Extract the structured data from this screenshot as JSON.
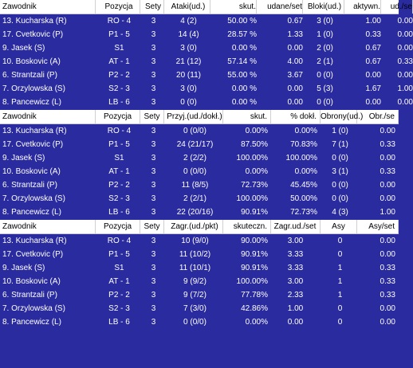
{
  "tables": [
    {
      "headers": [
        "Zawodnik",
        "Pozycja",
        "Sety",
        "Ataki(ud.)",
        "skut.",
        "udane/set",
        "Bloki(ud.)",
        "aktywn.",
        "ud./se"
      ],
      "rows": [
        [
          "13. Kucharska (R)",
          "RO - 4",
          "3",
          "4 (2)",
          "50.00 %",
          "0.67",
          "3 (0)",
          "1.00",
          "0.00"
        ],
        [
          "17. Cvetkovic (P)",
          "P1 - 5",
          "3",
          "14 (4)",
          "28.57 %",
          "1.33",
          "1 (0)",
          "0.33",
          "0.00"
        ],
        [
          "9. Jasek (S)",
          "S1",
          "3",
          "3 (0)",
          "0.00 %",
          "0.00",
          "2 (0)",
          "0.67",
          "0.00"
        ],
        [
          "10. Boskovic (A)",
          "AT - 1",
          "3",
          "21 (12)",
          "57.14 %",
          "4.00",
          "2 (1)",
          "0.67",
          "0.33"
        ],
        [
          "6. Strantzali (P)",
          "P2 - 2",
          "3",
          "20 (11)",
          "55.00 %",
          "3.67",
          "0 (0)",
          "0.00",
          "0.00"
        ],
        [
          "7. Orzylowska (S)",
          "S2 - 3",
          "3",
          "3 (0)",
          "0.00 %",
          "0.00",
          "5 (3)",
          "1.67",
          "1.00"
        ],
        [
          "8. Pancewicz (L)",
          "LB - 6",
          "3",
          "0 (0)",
          "0.00 %",
          "0.00",
          "0 (0)",
          "0.00",
          "0.00"
        ]
      ]
    },
    {
      "headers": [
        "Zawodnik",
        "Pozycja",
        "Sety",
        "Przyj.(ud./dokł.)",
        "skut.",
        "% dokł.",
        "Obrony(ud.)",
        "Obr./se"
      ],
      "rows": [
        [
          "13. Kucharska (R)",
          "RO - 4",
          "3",
          "0 (0/0)",
          "0.00%",
          "0.00%",
          "1 (0)",
          "0.00"
        ],
        [
          "17. Cvetkovic (P)",
          "P1 - 5",
          "3",
          "24 (21/17)",
          "87.50%",
          "70.83%",
          "7 (1)",
          "0.33"
        ],
        [
          "9. Jasek (S)",
          "S1",
          "3",
          "2 (2/2)",
          "100.00%",
          "100.00%",
          "0 (0)",
          "0.00"
        ],
        [
          "10. Boskovic (A)",
          "AT - 1",
          "3",
          "0 (0/0)",
          "0.00%",
          "0.00%",
          "3 (1)",
          "0.33"
        ],
        [
          "6. Strantzali (P)",
          "P2 - 2",
          "3",
          "11 (8/5)",
          "72.73%",
          "45.45%",
          "0 (0)",
          "0.00"
        ],
        [
          "7. Orzylowska (S)",
          "S2 - 3",
          "3",
          "2 (2/1)",
          "100.00%",
          "50.00%",
          "0 (0)",
          "0.00"
        ],
        [
          "8. Pancewicz (L)",
          "LB - 6",
          "3",
          "22 (20/16)",
          "90.91%",
          "72.73%",
          "4 (3)",
          "1.00"
        ]
      ]
    },
    {
      "headers": [
        "Zawodnik",
        "Pozycja",
        "Sety",
        "Zagr.(ud./pkt)",
        "skuteczn.",
        "Zagr.ud./set",
        "Asy",
        "Asy/set"
      ],
      "rows": [
        [
          "13. Kucharska (R)",
          "RO - 4",
          "3",
          "10 (9/0)",
          "90.00%",
          "3.00",
          "0",
          "0.00"
        ],
        [
          "17. Cvetkovic (P)",
          "P1 - 5",
          "3",
          "11 (10/2)",
          "90.91%",
          "3.33",
          "0",
          "0.00"
        ],
        [
          "9. Jasek (S)",
          "S1",
          "3",
          "11 (10/1)",
          "90.91%",
          "3.33",
          "1",
          "0.33"
        ],
        [
          "10. Boskovic (A)",
          "AT - 1",
          "3",
          "9 (9/2)",
          "100.00%",
          "3.00",
          "1",
          "0.33"
        ],
        [
          "6. Strantzali (P)",
          "P2 - 2",
          "3",
          "9 (7/2)",
          "77.78%",
          "2.33",
          "1",
          "0.33"
        ],
        [
          "7. Orzylowska (S)",
          "S2 - 3",
          "3",
          "7 (3/0)",
          "42.86%",
          "1.00",
          "0",
          "0.00"
        ],
        [
          "8. Pancewicz (L)",
          "LB - 6",
          "3",
          "0 (0/0)",
          "0.00%",
          "0.00",
          "0",
          "0.00"
        ]
      ]
    }
  ],
  "colors": {
    "background": "#2b2ba0",
    "header_bg": "#ffffff",
    "text": "#ffffff"
  }
}
